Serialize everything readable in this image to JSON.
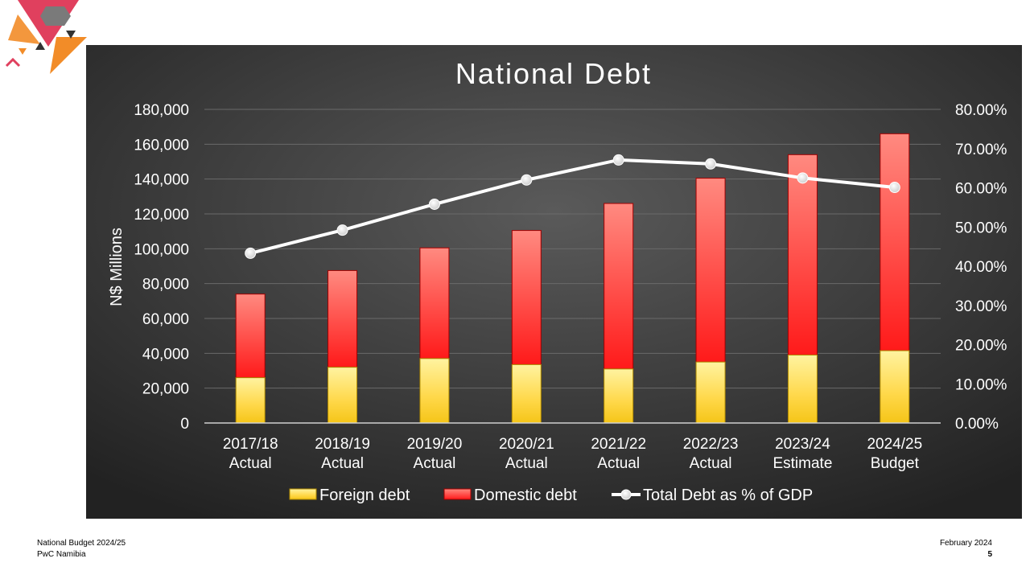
{
  "footer": {
    "left_line1": "National Budget 2024/25",
    "left_line2": "PwC Namibia",
    "right_line1": "February 2024",
    "page_number": "5"
  },
  "colors": {
    "foreign_debt": "#f5c518",
    "domestic_debt": "#ff2020",
    "gdp_line": "#ffffff",
    "panel_background": "#3a3a3a"
  },
  "chart_data": {
    "type": "bar",
    "stacked": true,
    "title": "National Debt",
    "ylabel": "N$ Millions",
    "y2label": "",
    "ylim": [
      0,
      180000
    ],
    "y2lim": [
      0,
      0.8
    ],
    "yticks": [
      "0",
      "20,000",
      "40,000",
      "60,000",
      "80,000",
      "100,000",
      "120,000",
      "140,000",
      "160,000",
      "180,000"
    ],
    "y2ticks": [
      "0.00%",
      "10.00%",
      "20.00%",
      "30.00%",
      "40.00%",
      "50.00%",
      "60.00%",
      "70.00%",
      "80.00%"
    ],
    "categories": [
      [
        "2017/18",
        "Actual"
      ],
      [
        "2018/19",
        "Actual"
      ],
      [
        "2019/20",
        "Actual"
      ],
      [
        "2020/21",
        "Actual"
      ],
      [
        "2021/22",
        "Actual"
      ],
      [
        "2022/23",
        "Actual"
      ],
      [
        "2023/24",
        "Estimate"
      ],
      [
        "2024/25",
        "Budget"
      ]
    ],
    "series": [
      {
        "name": "Foreign debt",
        "kind": "bar",
        "axis": "left",
        "values": [
          26000,
          32000,
          37000,
          33500,
          31000,
          35000,
          39000,
          41500
        ]
      },
      {
        "name": "Domestic debt",
        "kind": "bar",
        "axis": "left",
        "values": [
          48000,
          55500,
          63500,
          77000,
          95000,
          105500,
          115000,
          124500
        ]
      },
      {
        "name": "Total Debt as % of GDP",
        "kind": "line",
        "axis": "right",
        "values": [
          0.433,
          0.492,
          0.558,
          0.62,
          0.671,
          0.661,
          0.625,
          0.601
        ]
      }
    ],
    "grid": true,
    "legend": "bottom"
  }
}
